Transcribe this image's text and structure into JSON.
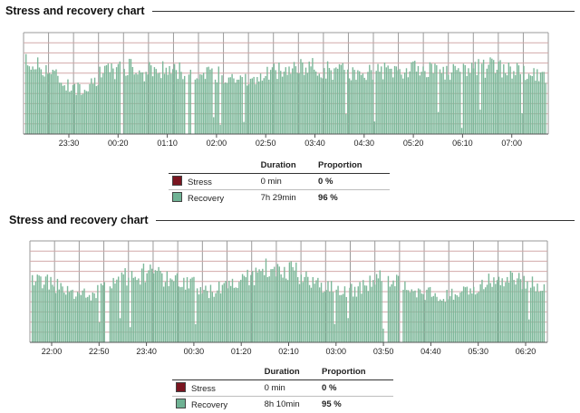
{
  "panels": [
    {
      "title": "Stress and recovery chart",
      "chart_data": {
        "type": "bar",
        "title": "Stress and recovery chart",
        "x_ticks": [
          "23:30",
          "00:20",
          "01:10",
          "02:00",
          "02:50",
          "03:40",
          "04:30",
          "05:20",
          "06:10",
          "07:00"
        ],
        "series": [
          {
            "name": "Recovery",
            "color": "#7db89a"
          }
        ],
        "recovery_level_profile": [
          [
            0.0,
            0.73
          ],
          [
            0.04,
            0.68
          ],
          [
            0.07,
            0.55
          ],
          [
            0.1,
            0.45
          ],
          [
            0.12,
            0.5
          ],
          [
            0.15,
            0.62
          ],
          [
            0.19,
            0.68
          ],
          [
            0.23,
            0.63
          ],
          [
            0.27,
            0.66
          ],
          [
            0.31,
            0.65
          ],
          [
            0.35,
            0.6
          ],
          [
            0.39,
            0.6
          ],
          [
            0.43,
            0.52
          ],
          [
            0.47,
            0.62
          ],
          [
            0.51,
            0.66
          ],
          [
            0.55,
            0.68
          ],
          [
            0.6,
            0.64
          ],
          [
            0.65,
            0.62
          ],
          [
            0.7,
            0.66
          ],
          [
            0.75,
            0.65
          ],
          [
            0.8,
            0.62
          ],
          [
            0.85,
            0.66
          ],
          [
            0.9,
            0.68
          ],
          [
            0.95,
            0.62
          ],
          [
            1.0,
            0.58
          ]
        ],
        "grid": true,
        "legend_placement": "below"
      },
      "legend": {
        "col_duration": "Duration",
        "col_proportion": "Proportion",
        "rows": [
          {
            "label": "Stress",
            "color": "#7a1520",
            "duration": "0 min",
            "proportion": "0 %"
          },
          {
            "label": "Recovery",
            "color": "#6fb294",
            "duration": "7h 29min",
            "proportion": "96 %"
          }
        ]
      }
    },
    {
      "title": "Stress and recovery chart",
      "chart_data": {
        "type": "bar",
        "title": "Stress and recovery chart",
        "x_ticks": [
          "22:00",
          "22:50",
          "23:40",
          "00:30",
          "01:20",
          "02:10",
          "03:00",
          "03:50",
          "04:40",
          "05:30",
          "06:20"
        ],
        "series": [
          {
            "name": "Recovery",
            "color": "#7db89a"
          }
        ],
        "recovery_level_profile": [
          [
            0.0,
            0.62
          ],
          [
            0.04,
            0.6
          ],
          [
            0.08,
            0.5
          ],
          [
            0.12,
            0.48
          ],
          [
            0.15,
            0.56
          ],
          [
            0.19,
            0.68
          ],
          [
            0.23,
            0.7
          ],
          [
            0.27,
            0.65
          ],
          [
            0.31,
            0.6
          ],
          [
            0.35,
            0.52
          ],
          [
            0.39,
            0.6
          ],
          [
            0.43,
            0.68
          ],
          [
            0.47,
            0.78
          ],
          [
            0.5,
            0.74
          ],
          [
            0.53,
            0.66
          ],
          [
            0.57,
            0.58
          ],
          [
            0.6,
            0.5
          ],
          [
            0.64,
            0.56
          ],
          [
            0.68,
            0.66
          ],
          [
            0.72,
            0.6
          ],
          [
            0.76,
            0.5
          ],
          [
            0.8,
            0.46
          ],
          [
            0.84,
            0.5
          ],
          [
            0.88,
            0.6
          ],
          [
            0.92,
            0.64
          ],
          [
            0.96,
            0.62
          ],
          [
            1.0,
            0.58
          ]
        ],
        "grid": true,
        "legend_placement": "below"
      },
      "legend": {
        "col_duration": "Duration",
        "col_proportion": "Proportion",
        "rows": [
          {
            "label": "Stress",
            "color": "#7a1520",
            "duration": "0 min",
            "proportion": "0 %"
          },
          {
            "label": "Recovery",
            "color": "#6fb294",
            "duration": "8h 10min",
            "proportion": "95 %"
          }
        ]
      }
    }
  ]
}
